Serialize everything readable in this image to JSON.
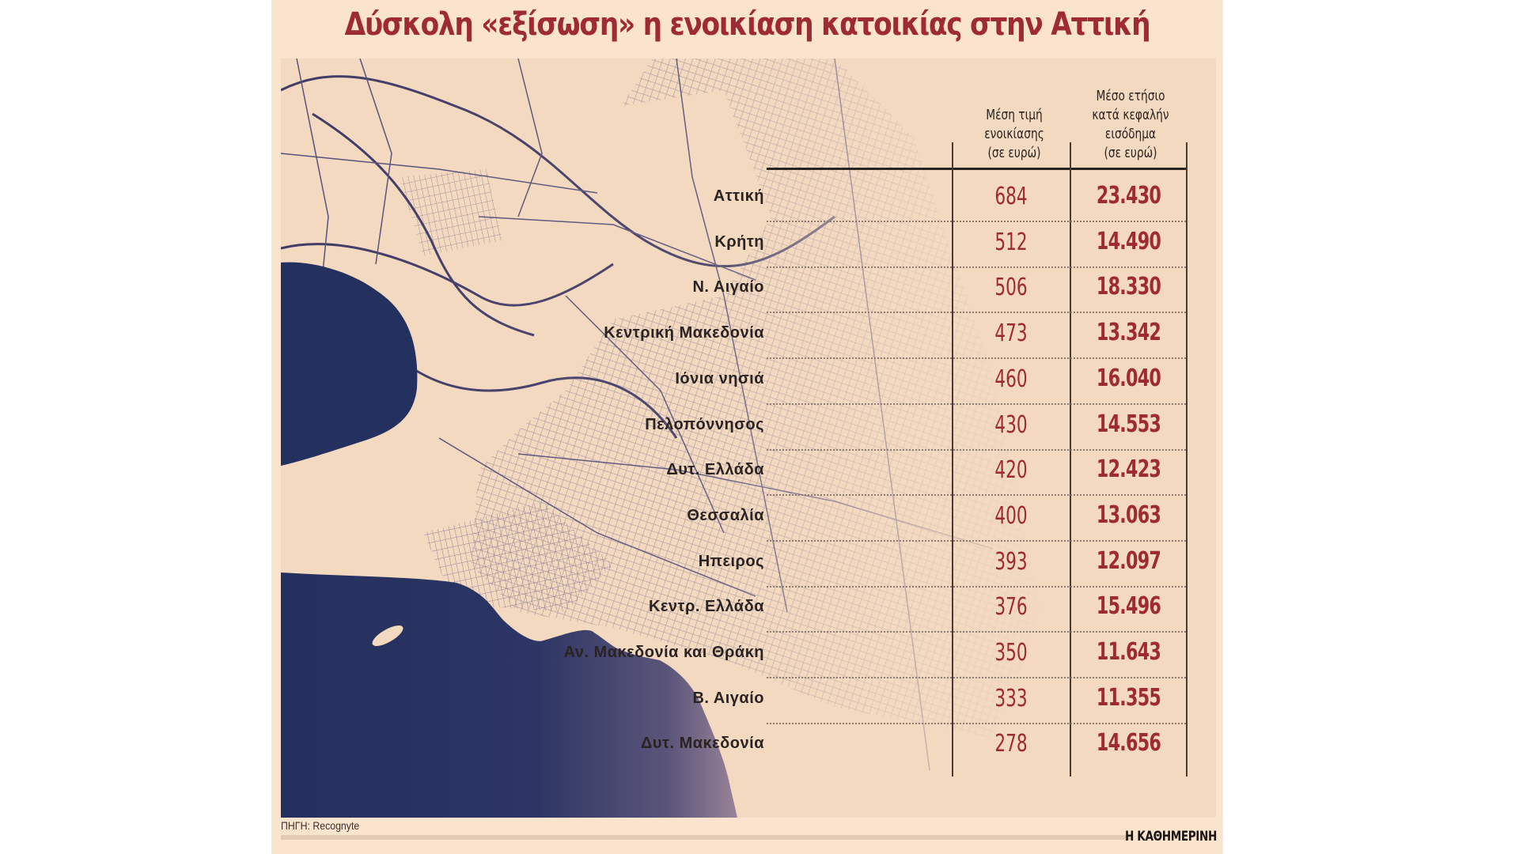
{
  "title": "Δύσκολη «εξίσωση» η ενοικίαση κατοικίας στην Αττική",
  "columns": {
    "rent": [
      "Μέση τιμή",
      "ενοικίασης",
      "(σε ευρώ)"
    ],
    "income": [
      "Μέσο ετήσιο",
      "κατά κεφαλήν",
      "εισόδημα",
      "(σε ευρώ)"
    ]
  },
  "chart_data": {
    "type": "table",
    "title": "Δύσκολη «εξίσωση» η ενοικίαση κατοικίας στην Αττική",
    "columns": [
      "",
      "Μέση τιμή ενοικίασης (σε ευρώ)",
      "Μέσο ετήσιο κατά κεφαλήν εισόδημα (σε ευρώ)"
    ],
    "rows": [
      {
        "region": "Αττική",
        "rent": "684",
        "income": "23.430"
      },
      {
        "region": "Κρήτη",
        "rent": "512",
        "income": "14.490"
      },
      {
        "region": "Ν. Αιγαίο",
        "rent": "506",
        "income": "18.330"
      },
      {
        "region": "Κεντρική Μακεδονία",
        "rent": "473",
        "income": "13.342"
      },
      {
        "region": "Ιόνια νησιά",
        "rent": "460",
        "income": "16.040"
      },
      {
        "region": "Πελοπόννησος",
        "rent": "430",
        "income": "14.553"
      },
      {
        "region": "Δυτ. Ελλάδα",
        "rent": "420",
        "income": "12.423"
      },
      {
        "region": "Θεσσαλία",
        "rent": "400",
        "income": "13.063"
      },
      {
        "region": "Ηπειρος",
        "rent": "393",
        "income": "12.097"
      },
      {
        "region": "Κεντρ. Ελλάδα",
        "rent": "376",
        "income": "15.496"
      },
      {
        "region": "Αν. Μακεδονία και Θράκη",
        "rent": "350",
        "income": "11.643"
      },
      {
        "region": "Β. Αιγαίο",
        "rent": "333",
        "income": "11.355"
      },
      {
        "region": "Δυτ. Μακεδονία",
        "rent": "278",
        "income": "14.656"
      }
    ]
  },
  "source": "ΠΗΓΗ: Recognyte",
  "brand": "Η ΚΑΘΗΜΕΡΙΝΗ",
  "colors": {
    "accent": "#9e2a33",
    "sea": "#24305e",
    "land": "#f2d9c0",
    "background": "#fbe4cd"
  }
}
